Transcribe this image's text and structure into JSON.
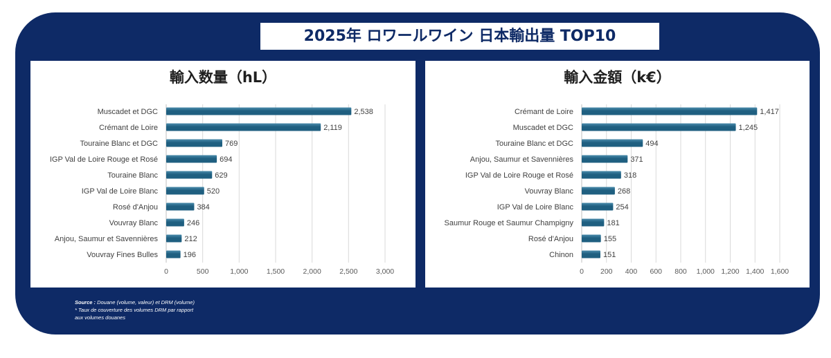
{
  "page": {
    "title": "2025年  ロワールワイン 日本輸出量 TOP10",
    "source_label": "Source :",
    "source_text": " Douane (volume, valeur) et DRM (volume)",
    "note_line1": "* Taux de couverture des volumes DRM par rapport",
    "note_line2": "aux volumes douanes",
    "colors": {
      "frame": "#0e2a66",
      "bar": "#1f5f80",
      "bar_highlight": "#4a8bab"
    }
  },
  "chart_data": [
    {
      "type": "bar",
      "orientation": "horizontal",
      "title": "輸入数量（hL）",
      "categories": [
        "Muscadet et DGC",
        "Crémant de Loire",
        "Touraine Blanc et DGC",
        "IGP Val de Loire Rouge et Rosé",
        "Touraine Blanc",
        "IGP Val de Loire Blanc",
        "Rosé d'Anjou",
        "Vouvray Blanc",
        "Anjou, Saumur et Savennières",
        "Vouvray Fines Bulles"
      ],
      "values": [
        2538,
        2119,
        769,
        694,
        629,
        520,
        384,
        246,
        212,
        196
      ],
      "value_labels": [
        "2,538",
        "2,119",
        "769",
        "694",
        "629",
        "520",
        "384",
        "246",
        "212",
        "196"
      ],
      "xlim": [
        0,
        3000
      ],
      "ticks": [
        0,
        500,
        1000,
        1500,
        2000,
        2500,
        3000
      ],
      "tick_labels": [
        "0",
        "500",
        "1,000",
        "1,500",
        "2,000",
        "2,500",
        "3,000"
      ],
      "grid": true
    },
    {
      "type": "bar",
      "orientation": "horizontal",
      "title": "輸入金額（k€）",
      "categories": [
        "Crémant de Loire",
        "Muscadet et DGC",
        "Touraine Blanc et DGC",
        "Anjou, Saumur et Savennières",
        "IGP Val de Loire Rouge et Rosé",
        "Vouvray Blanc",
        "IGP Val de Loire Blanc",
        "Saumur Rouge et Saumur Champigny",
        "Rosé d'Anjou",
        "Chinon"
      ],
      "values": [
        1417,
        1245,
        494,
        371,
        318,
        268,
        254,
        181,
        155,
        151
      ],
      "value_labels": [
        "1,417",
        "1,245",
        "494",
        "371",
        "318",
        "268",
        "254",
        "181",
        "155",
        "151"
      ],
      "xlim": [
        0,
        1600
      ],
      "ticks": [
        0,
        200,
        400,
        600,
        800,
        1000,
        1200,
        1400,
        1600
      ],
      "tick_labels": [
        "0",
        "200",
        "400",
        "600",
        "800",
        "1,000",
        "1,200",
        "1,400",
        "1,600"
      ],
      "grid": true
    }
  ]
}
